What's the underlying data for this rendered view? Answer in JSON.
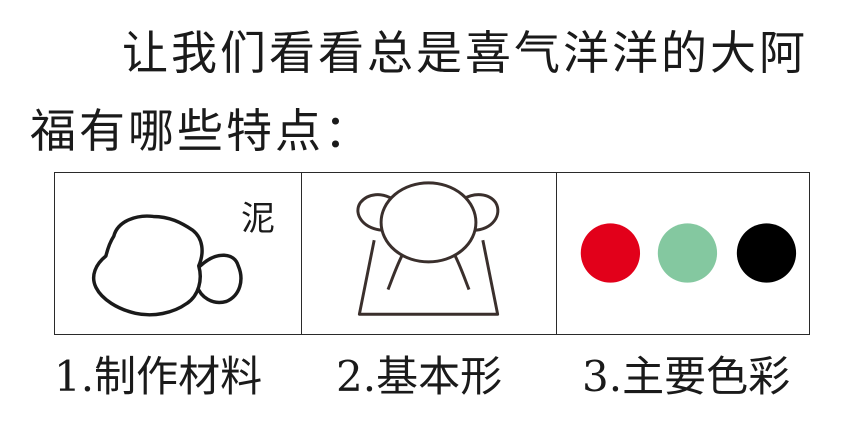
{
  "intro_text": "让我们看看总是喜气洋洋的大阿福有哪些特点：",
  "panels": {
    "material": {
      "icon": "clay-lumps-icon",
      "label": "泥"
    },
    "shape": {
      "icon": "doll-outline-icon"
    },
    "colors": {
      "swatches": [
        {
          "name": "red",
          "color": "#e2001a"
        },
        {
          "name": "green",
          "color": "#84c8a0"
        },
        {
          "name": "black",
          "color": "#000000"
        }
      ]
    }
  },
  "captions": [
    "1.制作材料",
    "2.基本形",
    "3.主要色彩"
  ]
}
